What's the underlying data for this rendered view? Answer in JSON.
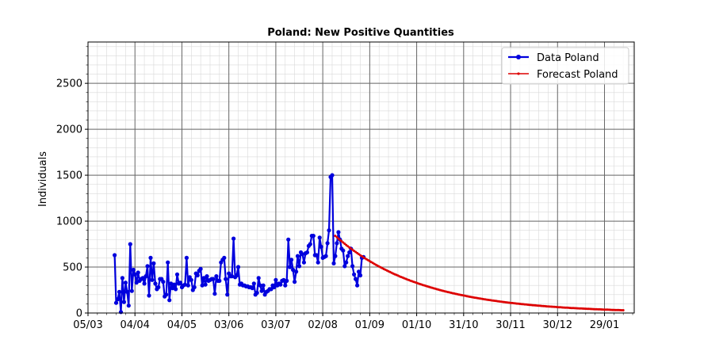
{
  "chart_data": {
    "type": "line",
    "title": "Poland: New Positive Quantities",
    "xlabel": "",
    "ylabel": "Individuals",
    "xlim": [
      "2020-03-05",
      "2021-02-17"
    ],
    "ylim": [
      0,
      2950
    ],
    "yticks": [
      0,
      500,
      1000,
      1500,
      2000,
      2500
    ],
    "xticks": [
      {
        "date": "2020-03-05",
        "label": "05/03"
      },
      {
        "date": "2020-04-04",
        "label": "04/04"
      },
      {
        "date": "2020-05-04",
        "label": "04/05"
      },
      {
        "date": "2020-06-03",
        "label": "03/06"
      },
      {
        "date": "2020-07-03",
        "label": "03/07"
      },
      {
        "date": "2020-08-02",
        "label": "02/08"
      },
      {
        "date": "2020-09-01",
        "label": "01/09"
      },
      {
        "date": "2020-10-01",
        "label": "01/10"
      },
      {
        "date": "2020-10-31",
        "label": "31/10"
      },
      {
        "date": "2020-11-30",
        "label": "30/11"
      },
      {
        "date": "2020-12-30",
        "label": "30/12"
      },
      {
        "date": "2021-01-29",
        "label": "29/01"
      }
    ],
    "grid": true,
    "legend_position": "top-right",
    "series": [
      {
        "name": "Data Poland",
        "color": "#0000dd",
        "marker": "circle",
        "x_start": "2020-03-22",
        "values": [
          630,
          110,
          150,
          230,
          10,
          380,
          120,
          330,
          230,
          80,
          750,
          240,
          470,
          420,
          330,
          440,
          350,
          370,
          380,
          320,
          400,
          510,
          190,
          600,
          360,
          540,
          320,
          260,
          280,
          370,
          370,
          340,
          180,
          200,
          550,
          140,
          320,
          270,
          310,
          260,
          420,
          320,
          330,
          280,
          300,
          310,
          600,
          300,
          390,
          360,
          250,
          280,
          430,
          410,
          460,
          480,
          300,
          380,
          310,
          400,
          350,
          360,
          370,
          370,
          210,
          400,
          350,
          350,
          550,
          580,
          600,
          370,
          200,
          430,
          400,
          400,
          810,
          390,
          410,
          500,
          310,
          320,
          300,
          300,
          290,
          290,
          280,
          280,
          270,
          320,
          200,
          220,
          380,
          300,
          240,
          300,
          200,
          230,
          240,
          260,
          260,
          300,
          280,
          360,
          300,
          320,
          310,
          350,
          360,
          300,
          350,
          800,
          500,
          580,
          470,
          340,
          450,
          620,
          510,
          660,
          640,
          550,
          650,
          660,
          730,
          750,
          840,
          840,
          630,
          630,
          550,
          820,
          720,
          600,
          610,
          620,
          760,
          900,
          1480,
          1500,
          540,
          620,
          760,
          880,
          800,
          700,
          680,
          510,
          550,
          620,
          660,
          700,
          510,
          420,
          370,
          300,
          450,
          410,
          600,
          610
        ]
      },
      {
        "name": "Forecast Poland",
        "color": "#dd0000",
        "marker": "dot",
        "x_start": "2020-08-10",
        "x_end": "2021-02-10",
        "start_value": 840,
        "end_value": 30
      }
    ]
  }
}
